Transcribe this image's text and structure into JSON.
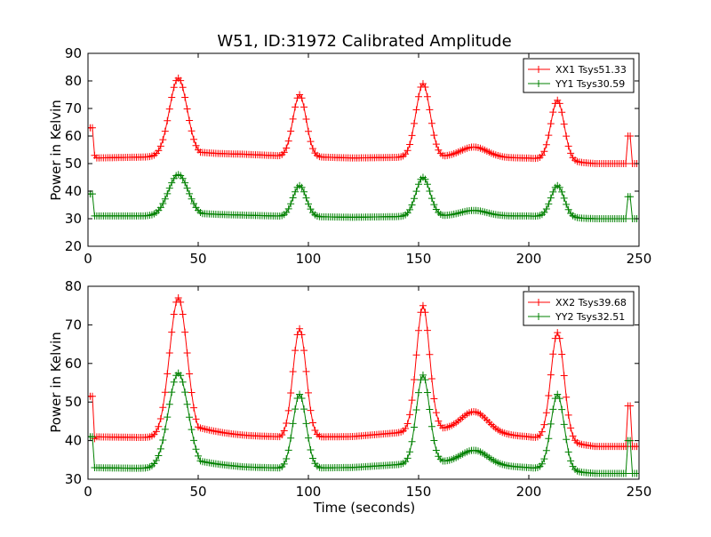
{
  "chart_data": [
    {
      "type": "line",
      "title": "W51, ID:31972 Calibrated Amplitude",
      "xlabel": "",
      "ylabel": "Power in Kelvin",
      "xlim": [
        0,
        250
      ],
      "ylim": [
        20,
        90
      ],
      "xticks": [
        0,
        50,
        100,
        150,
        200,
        250
      ],
      "yticks": [
        20,
        30,
        40,
        50,
        60,
        70,
        80,
        90
      ],
      "grid": false,
      "legend_position": "top-right",
      "marker": "+",
      "series": [
        {
          "name": "XX1 Tsys51.33",
          "color": "#ff0000",
          "baseline": 52,
          "peaks": [
            [
              41,
              81,
              4
            ],
            [
              96,
              75,
              3
            ],
            [
              152,
              79,
              3.2
            ],
            [
              175,
              56,
              6
            ],
            [
              213,
              73,
              3
            ]
          ],
          "tail": [
            [
              42,
              55,
              3.5,
              18
            ]
          ],
          "points": [
            [
              0,
              63
            ],
            [
              2,
              63
            ],
            [
              3,
              53
            ],
            [
              244,
              50
            ],
            [
              245,
              60
            ],
            [
              246,
              60
            ],
            [
              247,
              50
            ],
            [
              249,
              50
            ]
          ],
          "slope": [
            [
              70,
              53
            ],
            [
              120,
              52
            ],
            [
              160,
              52.5
            ],
            [
              200,
              52
            ],
            [
              230,
              50
            ],
            [
              244,
              50
            ]
          ]
        },
        {
          "name": "YY1 Tsys30.59",
          "color": "#008000",
          "baseline": 31,
          "peaks": [
            [
              41,
              46,
              4.5
            ],
            [
              96,
              42,
              3
            ],
            [
              152,
              45,
              3.2
            ],
            [
              175,
              33,
              6
            ],
            [
              213,
              42,
              3
            ]
          ],
          "tail": [
            [
              42,
              32.5,
              3.5,
              18
            ]
          ],
          "points": [
            [
              0,
              39
            ],
            [
              2,
              39
            ],
            [
              3,
              31
            ],
            [
              244,
              30
            ],
            [
              245,
              38
            ],
            [
              246,
              38
            ],
            [
              247,
              30
            ],
            [
              249,
              30
            ]
          ],
          "slope": [
            [
              70,
              31
            ],
            [
              120,
              30.5
            ],
            [
              160,
              31
            ],
            [
              200,
              31
            ],
            [
              230,
              30
            ],
            [
              244,
              30
            ]
          ]
        }
      ]
    },
    {
      "type": "line",
      "title": "",
      "xlabel": "Time (seconds)",
      "ylabel": "Power in Kelvin",
      "xlim": [
        0,
        250
      ],
      "ylim": [
        30,
        80
      ],
      "xticks": [
        0,
        50,
        100,
        150,
        200,
        250
      ],
      "yticks": [
        30,
        40,
        50,
        60,
        70,
        80
      ],
      "grid": false,
      "legend_position": "top-right",
      "marker": "+",
      "series": [
        {
          "name": "XX2 Tsys39.68",
          "color": "#ff0000",
          "baseline": 41,
          "peaks": [
            [
              41,
              77,
              4
            ],
            [
              96,
              69,
              3
            ],
            [
              152,
              75,
              3
            ],
            [
              175,
              47.5,
              6
            ],
            [
              213,
              68,
              3
            ]
          ],
          "tail": [
            [
              42,
              45,
              3.5,
              18
            ]
          ],
          "points": [
            [
              0,
              51.5
            ],
            [
              2,
              51.5
            ],
            [
              3,
              40.5
            ],
            [
              244,
              38.5
            ],
            [
              245,
              49
            ],
            [
              246,
              49
            ],
            [
              247,
              38.5
            ],
            [
              249,
              38.5
            ]
          ],
          "slope": [
            [
              70,
              40.5
            ],
            [
              120,
              41
            ],
            [
              160,
              43
            ],
            [
              200,
              41
            ],
            [
              230,
              38.5
            ],
            [
              244,
              38.5
            ]
          ]
        },
        {
          "name": "YY2 Tsys32.51",
          "color": "#008000",
          "baseline": 33,
          "peaks": [
            [
              41,
              57.5,
              4.5
            ],
            [
              96,
              52,
              3
            ],
            [
              152,
              57,
              3
            ],
            [
              175,
              37.5,
              6
            ],
            [
              213,
              52,
              3
            ]
          ],
          "tail": [
            [
              42,
              36,
              3.5,
              18
            ]
          ],
          "points": [
            [
              0,
              41
            ],
            [
              2,
              41
            ],
            [
              3,
              33
            ],
            [
              244,
              31.5
            ],
            [
              245,
              40
            ],
            [
              246,
              40
            ],
            [
              247,
              31.5
            ],
            [
              249,
              31.5
            ]
          ],
          "slope": [
            [
              70,
              32.5
            ],
            [
              120,
              33
            ],
            [
              160,
              34.5
            ],
            [
              200,
              33
            ],
            [
              230,
              31.5
            ],
            [
              244,
              31.5
            ]
          ]
        }
      ]
    }
  ]
}
